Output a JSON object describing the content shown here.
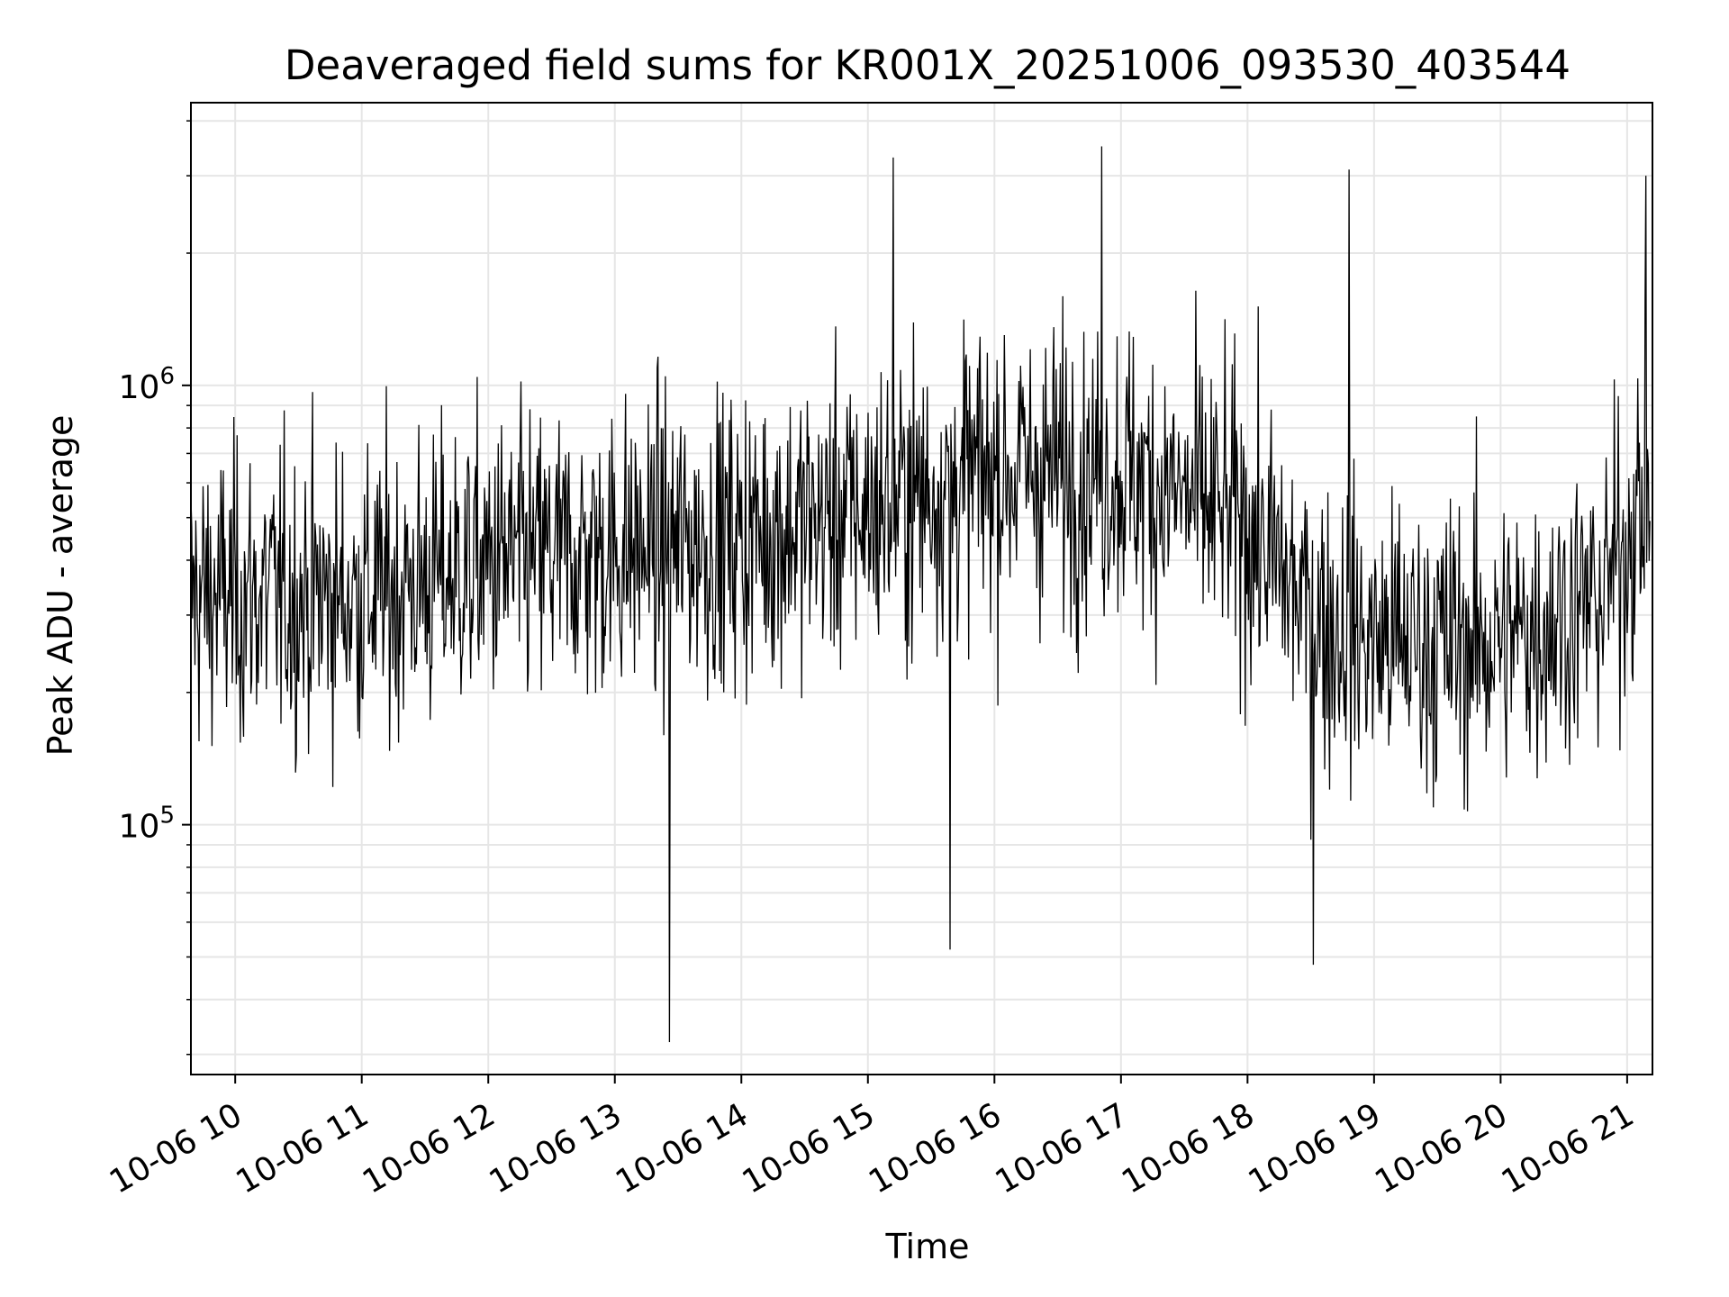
{
  "chart_data": {
    "type": "line",
    "title": "Deaveraged field sums for KR001X_20251006_093530_403544",
    "xlabel": "Time",
    "ylabel": "Peak ADU - average",
    "yscale": "log",
    "ylim": [
      27000,
      4400000
    ],
    "xlim_hours": [
      9.65,
      21.2
    ],
    "grid": true,
    "line_color": "#000000",
    "grid_color": "#e6e6e6",
    "x_ticks": [
      {
        "label": "10-06 10",
        "hour": 10
      },
      {
        "label": "10-06 11",
        "hour": 11
      },
      {
        "label": "10-06 12",
        "hour": 12
      },
      {
        "label": "10-06 13",
        "hour": 13
      },
      {
        "label": "10-06 14",
        "hour": 14
      },
      {
        "label": "10-06 15",
        "hour": 15
      },
      {
        "label": "10-06 16",
        "hour": 16
      },
      {
        "label": "10-06 17",
        "hour": 17
      },
      {
        "label": "10-06 18",
        "hour": 18
      },
      {
        "label": "10-06 19",
        "hour": 19
      },
      {
        "label": "10-06 20",
        "hour": 20
      },
      {
        "label": "10-06 21",
        "hour": 21
      }
    ],
    "y_ticks": [
      {
        "base": "10",
        "exp": "5",
        "value": 100000
      },
      {
        "base": "10",
        "exp": "6",
        "value": 1000000
      }
    ],
    "series_summary": {
      "name": "field sums",
      "points": 1800,
      "trend_hours": [
        9.65,
        11.0,
        12.0,
        13.0,
        14.0,
        15.0,
        16.0,
        17.0,
        18.0,
        18.5,
        19.0,
        20.0,
        20.8,
        21.2
      ],
      "trend_median": [
        330000,
        330000,
        390000,
        420000,
        450000,
        520000,
        640000,
        640000,
        480000,
        300000,
        260000,
        260000,
        330000,
        600000
      ],
      "notable_peaks": [
        {
          "hour": 16.85,
          "value": 3500000
        },
        {
          "hour": 15.2,
          "value": 3300000
        },
        {
          "hour": 18.8,
          "value": 3100000
        },
        {
          "hour": 21.15,
          "value": 3000000
        }
      ],
      "notable_dips": [
        {
          "hour": 13.43,
          "value": 32000
        },
        {
          "hour": 18.52,
          "value": 48000
        },
        {
          "hour": 15.65,
          "value": 52000
        }
      ]
    }
  }
}
